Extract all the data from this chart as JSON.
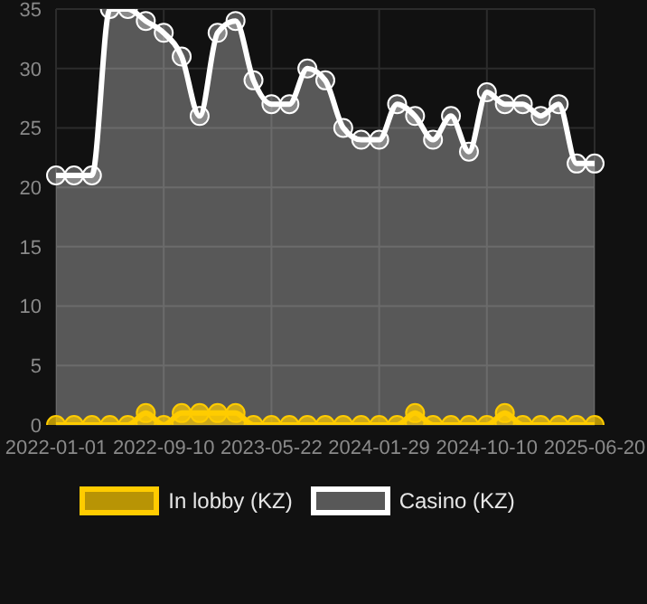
{
  "chart_data": {
    "type": "area",
    "categories": [
      "2022-01-01",
      null,
      null,
      null,
      null,
      null,
      "2022-09-10",
      null,
      null,
      null,
      null,
      null,
      "2023-05-22",
      null,
      null,
      null,
      null,
      null,
      "2024-01-29",
      null,
      null,
      null,
      null,
      null,
      "2024-10-10",
      null,
      null,
      null,
      null,
      null,
      "2025-06-20"
    ],
    "series": [
      {
        "name": "In lobby (KZ)",
        "color": "#ffcc00",
        "values": [
          0,
          0,
          0,
          0,
          0,
          1,
          0,
          1,
          1,
          1,
          1,
          0,
          0,
          0,
          0,
          0,
          0,
          0,
          0,
          0,
          1,
          0,
          0,
          0,
          0,
          1,
          0,
          0,
          0,
          0,
          0
        ]
      },
      {
        "name": "Casino (KZ)",
        "color": "#ffffff",
        "values": [
          21,
          21,
          21,
          35,
          35,
          34,
          33,
          31,
          26,
          33,
          34,
          29,
          27,
          27,
          30,
          29,
          25,
          24,
          24,
          27,
          26,
          24,
          26,
          23,
          28,
          27,
          27,
          26,
          27,
          22,
          22
        ]
      }
    ],
    "ylim": [
      0,
      35
    ],
    "yticks": [
      0,
      5,
      10,
      15,
      20,
      25,
      30,
      35
    ],
    "grid": true,
    "legend": "bottom",
    "marker": "circle"
  }
}
